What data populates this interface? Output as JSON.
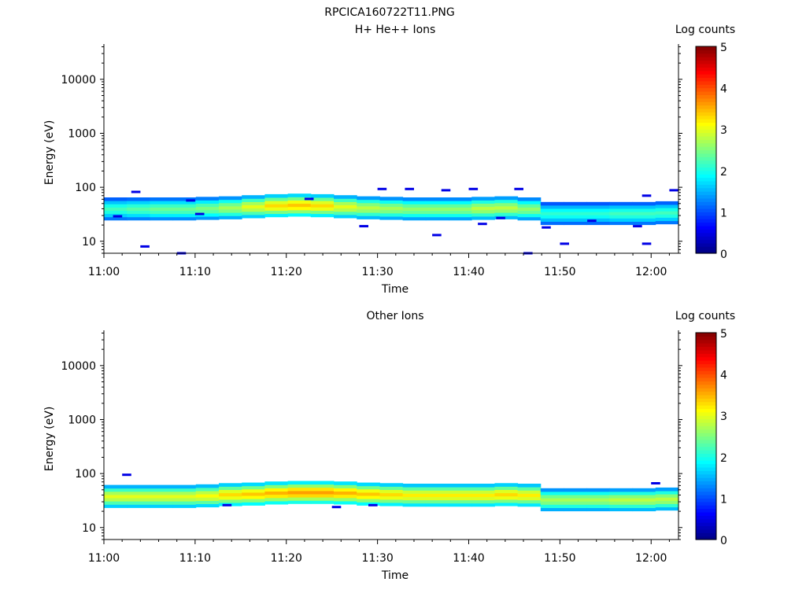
{
  "figure_title": "RPCICA160722T11.PNG",
  "chart_data": [
    {
      "type": "heatmap",
      "title": "H+ He++ Ions",
      "xlabel": "Time",
      "ylabel": "Energy (eV)",
      "x_range": [
        "11:00",
        "12:02"
      ],
      "x_ticks": [
        "11:00",
        "11:10",
        "11:20",
        "11:30",
        "11:40",
        "11:50",
        "12:00"
      ],
      "ylim": [
        6,
        45000
      ],
      "y_scale": "log",
      "y_ticks": [
        "10",
        "100",
        "1000",
        "10000"
      ],
      "colorbar": {
        "label": "Log counts",
        "min": 0,
        "max": 5,
        "ticks": [
          "0",
          "1",
          "2",
          "3",
          "4",
          "5"
        ],
        "colormap": "jet"
      },
      "band_energy_center_eV": [
        40,
        40,
        40,
        40,
        41,
        42,
        44,
        46,
        47,
        46,
        44,
        42,
        41,
        40,
        40,
        40,
        41,
        42,
        40,
        33,
        33,
        33,
        33,
        33,
        34
      ],
      "band_peak_log_counts": [
        2.2,
        2.3,
        2.4,
        2.4,
        2.5,
        2.7,
        3.0,
        3.3,
        3.4,
        3.3,
        3.0,
        2.8,
        2.7,
        2.6,
        2.6,
        2.6,
        2.8,
        2.8,
        2.6,
        2.1,
        2.1,
        2.1,
        2.2,
        2.2,
        2.2
      ],
      "scattered_low_counts": [
        {
          "time": "11:01",
          "energy_eV": 29
        },
        {
          "time": "11:03",
          "energy_eV": 82
        },
        {
          "time": "11:04",
          "energy_eV": 8
        },
        {
          "time": "11:08",
          "energy_eV": 6
        },
        {
          "time": "11:09",
          "energy_eV": 57
        },
        {
          "time": "11:10",
          "energy_eV": 32
        },
        {
          "time": "11:22",
          "energy_eV": 61
        },
        {
          "time": "11:28",
          "energy_eV": 19
        },
        {
          "time": "11:30",
          "energy_eV": 93
        },
        {
          "time": "11:33",
          "energy_eV": 93
        },
        {
          "time": "11:36",
          "energy_eV": 13
        },
        {
          "time": "11:37",
          "energy_eV": 88
        },
        {
          "time": "11:40",
          "energy_eV": 93
        },
        {
          "time": "11:41",
          "energy_eV": 21
        },
        {
          "time": "11:43",
          "energy_eV": 27
        },
        {
          "time": "11:45",
          "energy_eV": 93
        },
        {
          "time": "11:46",
          "energy_eV": 6
        },
        {
          "time": "11:48",
          "energy_eV": 18
        },
        {
          "time": "11:50",
          "energy_eV": 9
        },
        {
          "time": "11:53",
          "energy_eV": 24
        },
        {
          "time": "11:58",
          "energy_eV": 19
        },
        {
          "time": "11:59",
          "energy_eV": 9
        },
        {
          "time": "11:59",
          "energy_eV": 70
        },
        {
          "time": "12:02",
          "energy_eV": 88
        }
      ]
    },
    {
      "type": "heatmap",
      "title": "Other Ions",
      "xlabel": "Time",
      "ylabel": "Energy (eV)",
      "x_range": [
        "11:00",
        "12:02"
      ],
      "x_ticks": [
        "11:00",
        "11:10",
        "11:20",
        "11:30",
        "11:40",
        "11:50",
        "12:00"
      ],
      "ylim": [
        6,
        45000
      ],
      "y_scale": "log",
      "y_ticks": [
        "10",
        "100",
        "1000",
        "10000"
      ],
      "colorbar": {
        "label": "Log counts",
        "min": 0,
        "max": 5,
        "ticks": [
          "0",
          "1",
          "2",
          "3",
          "4",
          "5"
        ],
        "colormap": "jet"
      },
      "band_energy_center_eV": [
        38,
        38,
        38,
        38,
        39,
        41,
        42,
        44,
        45,
        45,
        44,
        42,
        41,
        40,
        40,
        40,
        40,
        41,
        40,
        33,
        33,
        33,
        33,
        33,
        34
      ],
      "band_peak_log_counts": [
        3.0,
        3.0,
        3.0,
        3.0,
        3.1,
        3.3,
        3.4,
        3.5,
        3.6,
        3.6,
        3.5,
        3.4,
        3.3,
        3.2,
        3.2,
        3.2,
        3.2,
        3.3,
        3.2,
        2.7,
        2.7,
        2.7,
        2.8,
        2.8,
        2.8
      ],
      "scattered_low_counts": [
        {
          "time": "11:02",
          "energy_eV": 95
        },
        {
          "time": "11:13",
          "energy_eV": 26
        },
        {
          "time": "11:25",
          "energy_eV": 24
        },
        {
          "time": "11:29",
          "energy_eV": 26
        },
        {
          "time": "12:00",
          "energy_eV": 66
        }
      ]
    }
  ]
}
